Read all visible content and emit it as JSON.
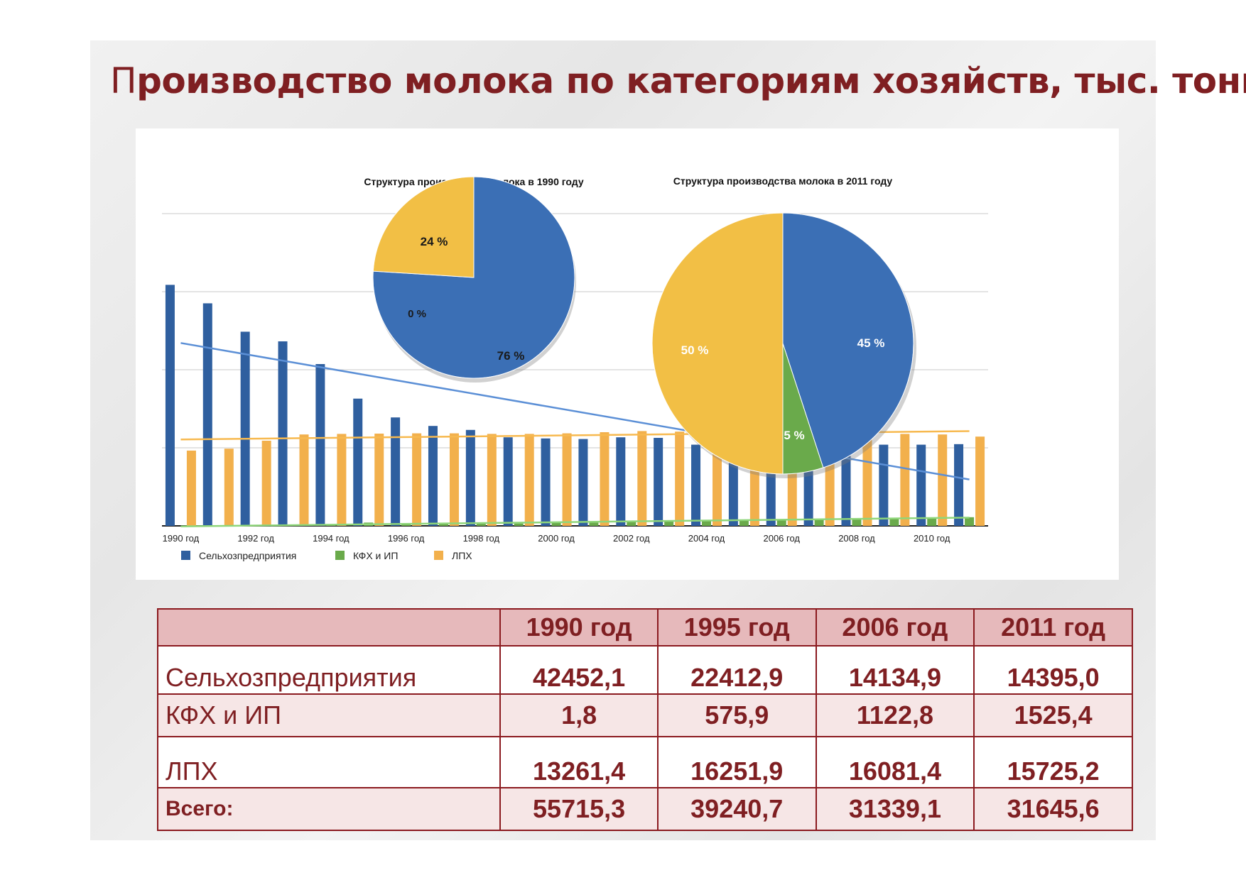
{
  "title_first_letter": "П",
  "title_rest": "роизводство молока по категориям хозяйств, тыс. тонн",
  "chart_data": [
    {
      "type": "bar",
      "categories": [
        "1990 год",
        "1991 год",
        "1992 год",
        "1993 год",
        "1994 год",
        "1995 год",
        "1996 год",
        "1997 год",
        "1998 год",
        "1999 год",
        "2000 год",
        "2001 год",
        "2002 год",
        "2003 год",
        "2004 год",
        "2005 год",
        "2006 год",
        "2007 год",
        "2008 год",
        "2009 год",
        "2010 год",
        "2011 год"
      ],
      "x_tick_labels": [
        "1990 год",
        "1992 год",
        "1994 год",
        "1996 год",
        "1998 год",
        "2000 год",
        "2002 год",
        "2004 год",
        "2006 год",
        "2008 год",
        "2010 год"
      ],
      "series": [
        {
          "name": "Сельхозпредприятия",
          "color": "#2f5f9f",
          "values": [
            42452,
            39200,
            34200,
            32500,
            28500,
            22413,
            19100,
            17600,
            16900,
            15600,
            15400,
            15300,
            15600,
            15500,
            14300,
            14100,
            14135,
            14100,
            14300,
            14300,
            14300,
            14395
          ]
        },
        {
          "name": "КФХ и ИП",
          "color": "#6aaa4b",
          "values": [
            2,
            60,
            100,
            160,
            220,
            576,
            300,
            330,
            360,
            420,
            500,
            580,
            700,
            780,
            880,
            950,
            1123,
            1210,
            1320,
            1420,
            1480,
            1525
          ]
        },
        {
          "name": "ЛПХ",
          "color": "#f2b04c",
          "values": [
            13261,
            13600,
            15000,
            16100,
            16200,
            16252,
            16300,
            16300,
            16200,
            16200,
            16300,
            16500,
            16700,
            16600,
            16900,
            16400,
            16081,
            15900,
            16200,
            16200,
            16100,
            15725
          ]
        }
      ],
      "trendline_colors": [
        "#5b8fd6",
        "#8fd67a",
        "#f7b94f"
      ],
      "ylim": [
        0,
        55000
      ],
      "grid": true,
      "legend_position": "bottom-left"
    },
    {
      "type": "pie",
      "title": "Структура производства молока в 1990 году",
      "slices": [
        {
          "name": "Сельхозпредприятия",
          "value": 76,
          "label": "76 %",
          "color": "#3b6fb5"
        },
        {
          "name": "КФХ и ИП",
          "value": 0,
          "label": "0 %",
          "color": "#6aaa4b"
        },
        {
          "name": "ЛПХ",
          "value": 24,
          "label": "24 %",
          "color": "#f2bf45"
        }
      ]
    },
    {
      "type": "pie",
      "title": "Структура производства молока в 2011 году",
      "slices": [
        {
          "name": "Сельхозпредприятия",
          "value": 45,
          "label": "45 %",
          "color": "#3b6fb5"
        },
        {
          "name": "КФХ и ИП",
          "value": 5,
          "label": "5 %",
          "color": "#6aaa4b"
        },
        {
          "name": "ЛПХ",
          "value": 50,
          "label": "50 %",
          "color": "#f2bf45"
        }
      ]
    }
  ],
  "table": {
    "header": [
      "",
      "1990 год",
      "1995 год",
      "2006 год",
      "2011 год"
    ],
    "rows": [
      {
        "label": "Сельхозпредприятия",
        "values": [
          "42452,1",
          "22412,9",
          "14134,9",
          "14395,0"
        ]
      },
      {
        "label": "КФХ и ИП",
        "values": [
          "1,8",
          "575,9",
          "1122,8",
          "1525,4"
        ]
      },
      {
        "label": "ЛПХ",
        "values": [
          "13261,4",
          "16251,9",
          "16081,4",
          "15725,2"
        ]
      },
      {
        "label": "Всего:",
        "values": [
          "55715,3",
          "39240,7",
          "31339,1",
          "31645,6"
        ]
      }
    ]
  }
}
